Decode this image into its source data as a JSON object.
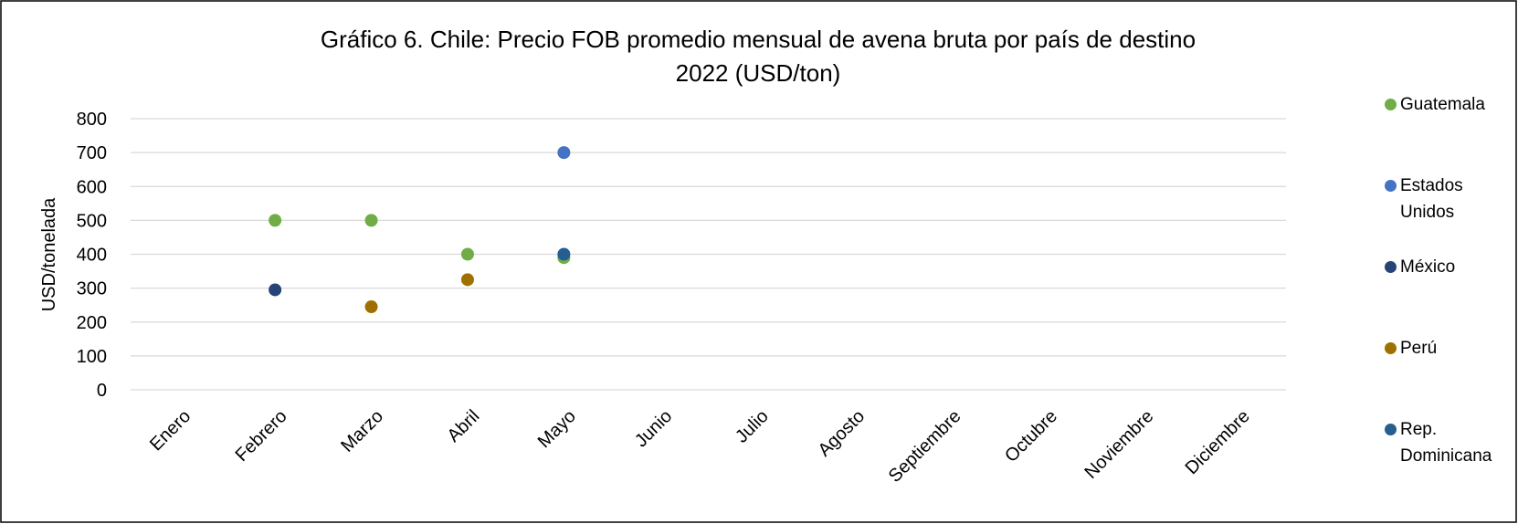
{
  "chart_data": {
    "type": "scatter",
    "title": [
      "Gráfico 6. Chile: Precio FOB promedio mensual de avena bruta por país de destino",
      "2022 (USD/ton)"
    ],
    "y_label": "USD/tonelada",
    "categories": [
      "Enero",
      "Febrero",
      "Marzo",
      "Abril",
      "Mayo",
      "Junio",
      "Julio",
      "Agosto",
      "Septiembre",
      "Octubre",
      "Noviembre",
      "Diciembre"
    ],
    "series": [
      {
        "name": "Guatemala",
        "color": "#70ad47",
        "values": [
          null,
          500,
          500,
          400,
          390,
          null,
          null,
          null,
          null,
          null,
          null,
          null
        ]
      },
      {
        "name": "Estados Unidos",
        "color": "#4472c4",
        "values": [
          null,
          null,
          null,
          null,
          700,
          null,
          null,
          null,
          null,
          null,
          null,
          null
        ]
      },
      {
        "name": "México",
        "color": "#264478",
        "values": [
          null,
          295,
          null,
          null,
          null,
          null,
          null,
          null,
          null,
          null,
          null,
          null
        ]
      },
      {
        "name": "Perú",
        "color": "#9e7000",
        "values": [
          null,
          null,
          245,
          325,
          null,
          null,
          null,
          null,
          null,
          null,
          null,
          null
        ]
      },
      {
        "name": "Rep. Dominicana",
        "color": "#255e91",
        "values": [
          null,
          null,
          null,
          null,
          400,
          null,
          null,
          null,
          null,
          null,
          null,
          null
        ]
      }
    ],
    "ylim": [
      0,
      800
    ],
    "yticks": [
      0,
      100,
      200,
      300,
      400,
      500,
      600,
      700,
      800
    ],
    "grid": true,
    "legend": "right"
  }
}
